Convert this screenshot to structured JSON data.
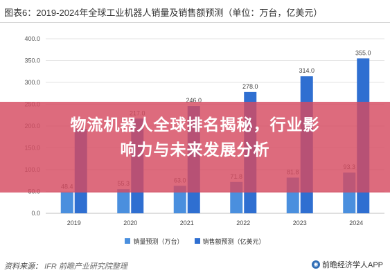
{
  "header": {
    "title": "图表6：2019-2024年全球工业机器人销量及销售额预测（单位：万台，亿美元）"
  },
  "overlay": {
    "line1": "物流机器人全球排名揭秘，行业影",
    "line2": "响力与未来发展分析"
  },
  "footer": {
    "source_label": "资料来源：",
    "source_value": "IFR 前瞻产业研究院整理",
    "brand": "前瞻经济学人APP",
    "brand_icon": "brand-logo-icon"
  },
  "colors": {
    "sales_volume": "#4a8fde",
    "sales_revenue": "#2f6fd1",
    "overlay": "#d64a60"
  },
  "chart_data": {
    "type": "bar",
    "categories": [
      "2019",
      "2020",
      "2021",
      "2022",
      "2023",
      "2024"
    ],
    "series": [
      {
        "name": "销量预测（万台）",
        "values": [
          48.4,
          55.3,
          63.0,
          71.8,
          81.8,
          93.3
        ],
        "labels": [
          "48.4",
          "55.3",
          "63.0",
          "71.8",
          "81.8",
          "93.3"
        ]
      },
      {
        "name": "销售额预测（亿美元）",
        "values": [
          193.0,
          217.0,
          246.0,
          278.0,
          314.0,
          355.0
        ],
        "labels": [
          "",
          "217.0",
          "246.0",
          "278.0",
          "314.0",
          "355.0"
        ]
      }
    ],
    "yticks": [
      "0.0",
      "50.0",
      "100.0",
      "150.0",
      "200.0",
      "250.0",
      "300.0",
      "350.0",
      "400.0"
    ],
    "ylim": [
      0,
      400
    ],
    "grid": true,
    "legend": "bottom"
  }
}
